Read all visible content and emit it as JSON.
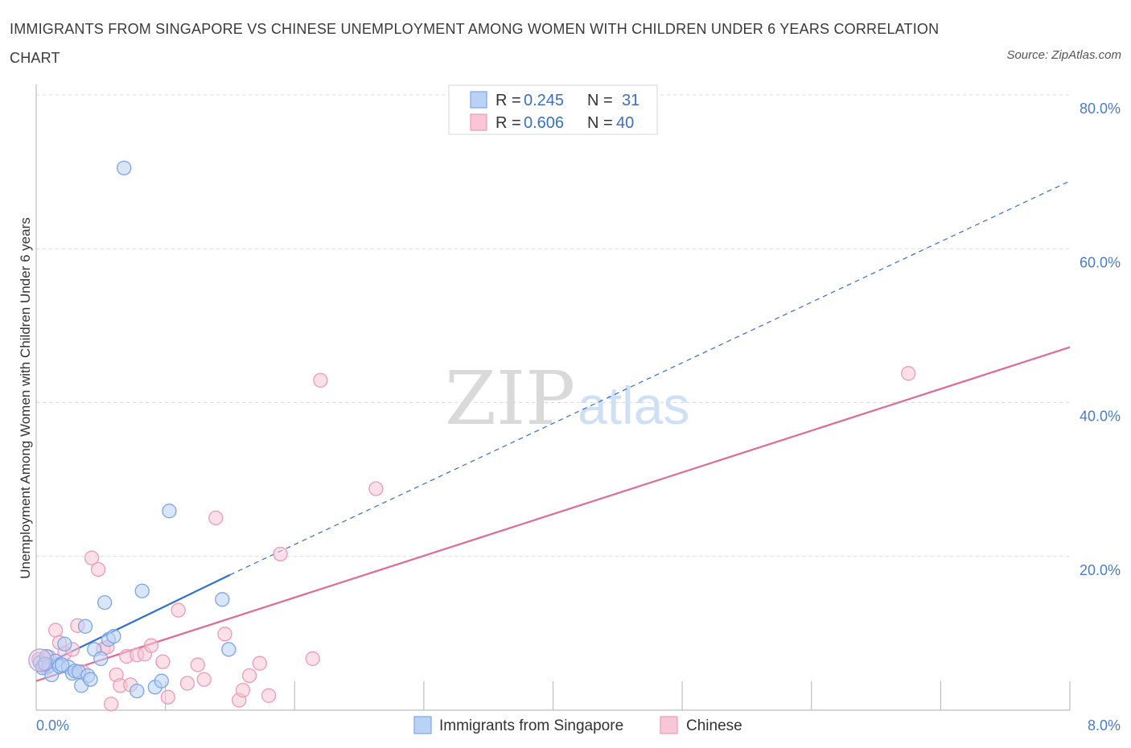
{
  "chart_data": {
    "type": "scatter",
    "title": "IMMIGRANTS FROM SINGAPORE VS CHINESE UNEMPLOYMENT AMONG WOMEN WITH CHILDREN UNDER 6 YEARS CORRELATION CHART",
    "source": "Source: ZipAtlas.com",
    "ylabel": "Unemployment Among Women with Children Under 6 years",
    "xlim": [
      0,
      8
    ],
    "ylim": [
      0,
      80
    ],
    "x_ticks": [
      {
        "value": 0,
        "label": "0.0%"
      },
      {
        "value": 8,
        "label": "8.0%"
      }
    ],
    "y_ticks": [
      {
        "value": 20,
        "label": "20.0%"
      },
      {
        "value": 40,
        "label": "40.0%"
      },
      {
        "value": 60,
        "label": "60.0%"
      },
      {
        "value": 80,
        "label": "80.0%"
      }
    ],
    "watermark": {
      "zip": "ZIP",
      "atlas": "atlas"
    },
    "legend": [
      {
        "series": "Immigrants from Singapore",
        "r_label": "R =",
        "r_value": "0.245",
        "n_label": "N =",
        "n_value": "31"
      },
      {
        "series": "Chinese",
        "r_label": "R =",
        "r_value": "0.606",
        "n_label": "N =",
        "n_value": "40"
      }
    ],
    "series": [
      {
        "name": "Immigrants from Singapore",
        "color": "#7aa6e6",
        "fill": "#b9d2f5",
        "line_color": "#2f6fd1",
        "trend": {
          "solid": [
            [
              0,
              5.4
            ],
            [
              1.5,
              17.6
            ]
          ],
          "dashed": [
            [
              1.5,
              17.6
            ],
            [
              8,
              68.8
            ]
          ]
        },
        "points": [
          [
            0.03,
            6.2
          ],
          [
            0.05,
            5.5
          ],
          [
            0.08,
            7.0
          ],
          [
            0.1,
            5.8
          ],
          [
            0.12,
            4.6
          ],
          [
            0.15,
            6.4
          ],
          [
            0.18,
            5.7
          ],
          [
            0.22,
            8.6
          ],
          [
            0.25,
            5.6
          ],
          [
            0.28,
            4.8
          ],
          [
            0.3,
            5.1
          ],
          [
            0.33,
            5.0
          ],
          [
            0.35,
            3.2
          ],
          [
            0.38,
            10.9
          ],
          [
            0.4,
            4.5
          ],
          [
            0.42,
            4.0
          ],
          [
            0.45,
            7.9
          ],
          [
            0.5,
            6.7
          ],
          [
            0.53,
            14.0
          ],
          [
            0.56,
            9.2
          ],
          [
            0.6,
            9.6
          ],
          [
            0.68,
            70.5
          ],
          [
            0.78,
            2.5
          ],
          [
            0.82,
            15.5
          ],
          [
            0.92,
            3.0
          ],
          [
            0.97,
            3.8
          ],
          [
            1.03,
            25.9
          ],
          [
            1.44,
            14.4
          ],
          [
            1.49,
            7.9
          ],
          [
            0.07,
            6.0
          ],
          [
            0.2,
            5.9
          ]
        ]
      },
      {
        "name": "Chinese",
        "color": "#eb9bb6",
        "fill": "#f8c6d6",
        "line_color": "#e06a96",
        "trend": {
          "solid": [
            [
              0,
              3.8
            ],
            [
              8,
              47.2
            ]
          ]
        },
        "points": [
          [
            0.02,
            6.6
          ],
          [
            0.05,
            5.8
          ],
          [
            0.1,
            6.9
          ],
          [
            0.15,
            10.4
          ],
          [
            0.18,
            8.8
          ],
          [
            0.22,
            7.4
          ],
          [
            0.28,
            7.9
          ],
          [
            0.32,
            11.0
          ],
          [
            0.36,
            5.0
          ],
          [
            0.43,
            19.8
          ],
          [
            0.48,
            18.3
          ],
          [
            0.52,
            8.0
          ],
          [
            0.55,
            8.2
          ],
          [
            0.58,
            0.8
          ],
          [
            0.62,
            4.6
          ],
          [
            0.65,
            3.2
          ],
          [
            0.7,
            7.0
          ],
          [
            0.73,
            3.3
          ],
          [
            0.78,
            7.2
          ],
          [
            0.84,
            7.3
          ],
          [
            0.89,
            8.4
          ],
          [
            0.98,
            6.3
          ],
          [
            1.02,
            1.7
          ],
          [
            1.1,
            13.0
          ],
          [
            1.17,
            3.5
          ],
          [
            1.25,
            5.9
          ],
          [
            1.3,
            4.0
          ],
          [
            1.39,
            25.0
          ],
          [
            1.46,
            9.9
          ],
          [
            1.57,
            1.3
          ],
          [
            1.6,
            2.6
          ],
          [
            1.65,
            4.5
          ],
          [
            1.73,
            6.1
          ],
          [
            1.8,
            1.9
          ],
          [
            1.89,
            20.3
          ],
          [
            2.14,
            6.7
          ],
          [
            2.2,
            42.9
          ],
          [
            2.63,
            28.8
          ],
          [
            6.75,
            43.8
          ],
          [
            0.08,
            5.5
          ]
        ]
      }
    ]
  }
}
